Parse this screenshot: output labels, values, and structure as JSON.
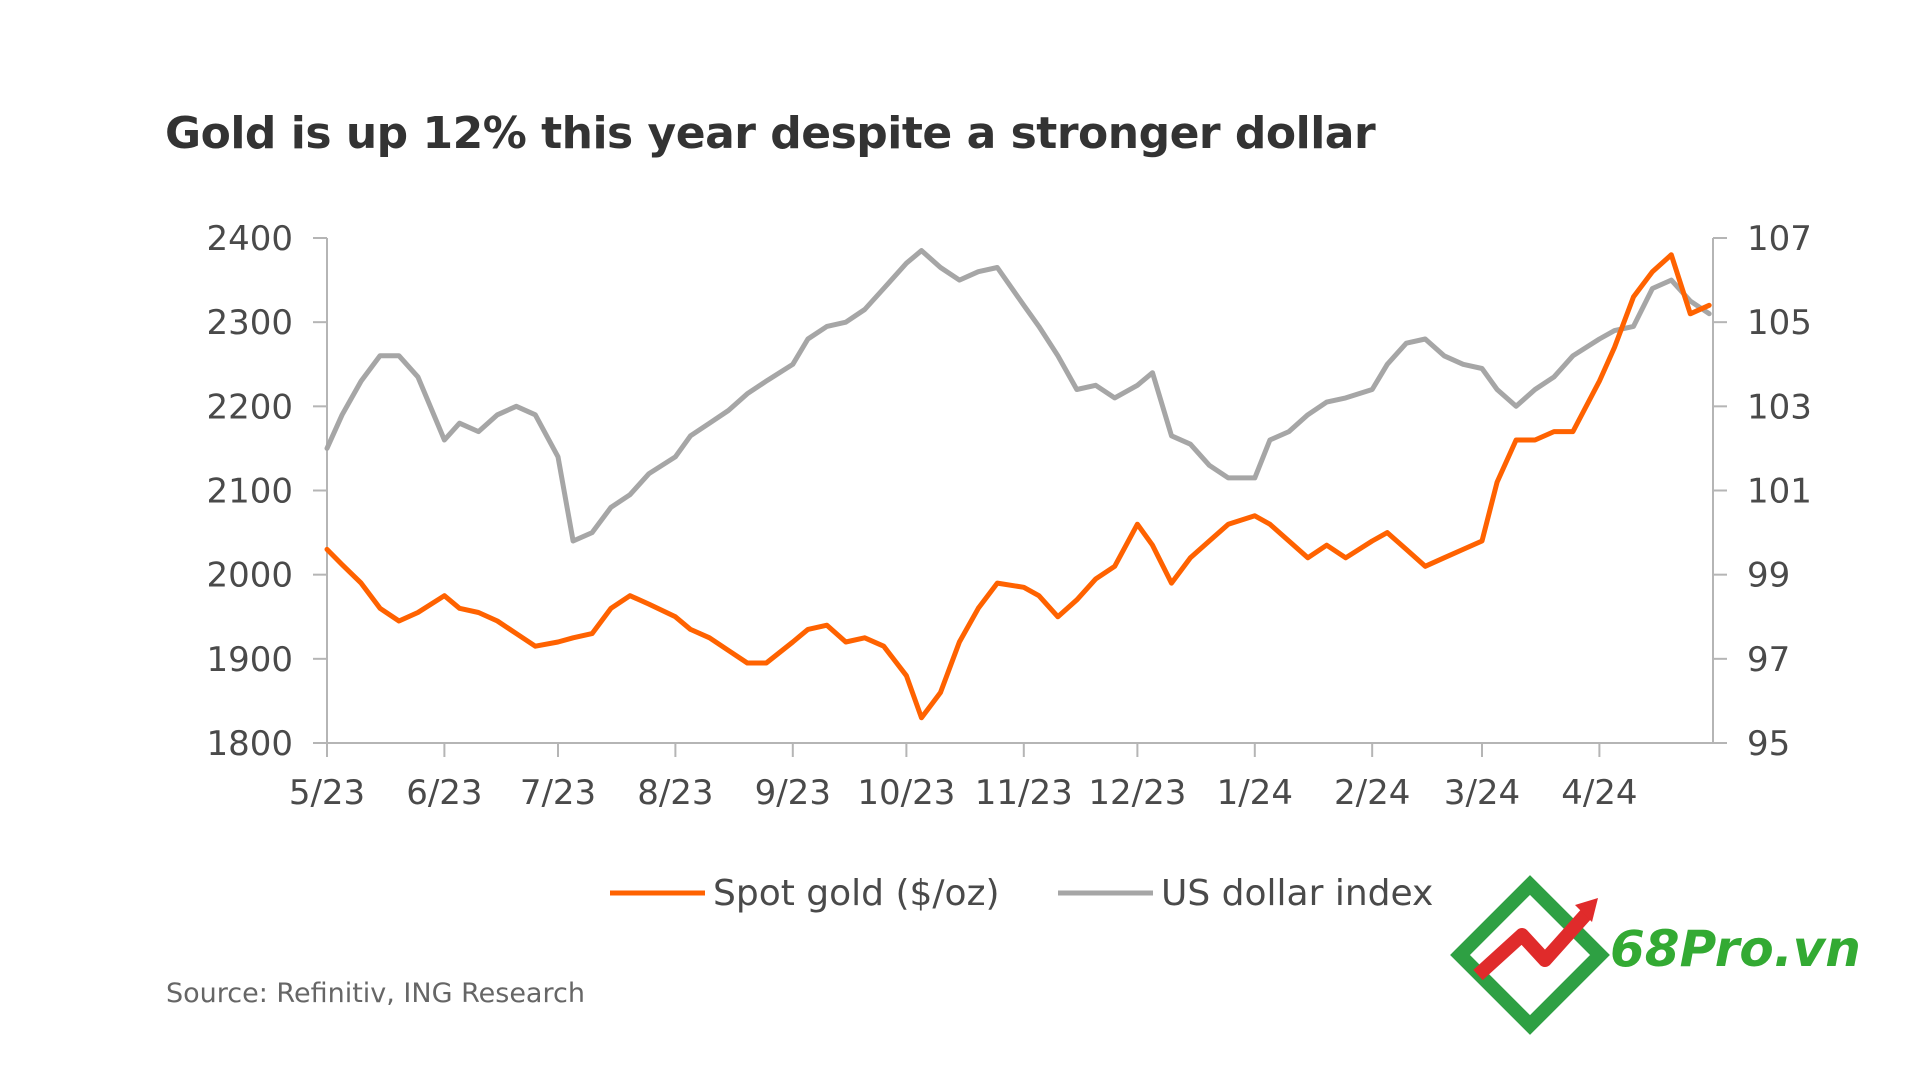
{
  "chart_data": {
    "type": "line",
    "title": "Gold is up 12% this year despite a stronger dollar",
    "source": "Source: Refinitiv, ING Research",
    "x_tick_labels": [
      "5/23",
      "6/23",
      "7/23",
      "8/23",
      "9/23",
      "10/23",
      "11/23",
      "12/23",
      "1/24",
      "2/24",
      "3/24",
      "4/24"
    ],
    "y_left": {
      "ticks": [
        1800,
        1900,
        2000,
        2100,
        2200,
        2300,
        2400
      ],
      "range": [
        1800,
        2400
      ]
    },
    "y_right": {
      "ticks": [
        95,
        97,
        99,
        101,
        103,
        105,
        107
      ],
      "range": [
        95,
        107
      ]
    },
    "legend_placement": "bottom",
    "series": [
      {
        "name": "Spot gold ($/oz)",
        "axis": "left",
        "color": "#ff6200",
        "x": [
          "5/1/23",
          "5/5/23",
          "5/10/23",
          "5/15/23",
          "5/20/23",
          "5/25/23",
          "6/1/23",
          "6/5/23",
          "6/10/23",
          "6/15/23",
          "6/20/23",
          "6/25/23",
          "7/1/23",
          "7/5/23",
          "7/10/23",
          "7/15/23",
          "7/20/23",
          "7/25/23",
          "8/1/23",
          "8/5/23",
          "8/10/23",
          "8/15/23",
          "8/20/23",
          "8/25/23",
          "9/1/23",
          "9/5/23",
          "9/10/23",
          "9/15/23",
          "9/20/23",
          "9/25/23",
          "10/1/23",
          "10/5/23",
          "10/10/23",
          "10/15/23",
          "10/20/23",
          "10/25/23",
          "11/1/23",
          "11/5/23",
          "11/10/23",
          "11/15/23",
          "11/20/23",
          "11/25/23",
          "12/1/23",
          "12/5/23",
          "12/10/23",
          "12/15/23",
          "12/20/23",
          "12/25/23",
          "1/1/24",
          "1/5/24",
          "1/10/24",
          "1/15/24",
          "1/20/24",
          "1/25/24",
          "2/1/24",
          "2/5/24",
          "2/10/24",
          "2/15/24",
          "2/20/24",
          "2/25/24",
          "3/1/24",
          "3/5/24",
          "3/10/24",
          "3/15/24",
          "3/20/24",
          "3/25/24",
          "4/1/24",
          "4/5/24",
          "4/10/24",
          "4/15/24",
          "4/20/24",
          "4/25/24",
          "4/30/24"
        ],
        "values": [
          2030,
          2012,
          1990,
          1960,
          1945,
          1955,
          1975,
          1960,
          1955,
          1945,
          1930,
          1915,
          1920,
          1925,
          1930,
          1960,
          1975,
          1965,
          1950,
          1935,
          1925,
          1910,
          1895,
          1895,
          1920,
          1935,
          1940,
          1920,
          1925,
          1915,
          1880,
          1830,
          1860,
          1920,
          1960,
          1990,
          1985,
          1975,
          1950,
          1970,
          1995,
          2010,
          2060,
          2035,
          1990,
          2020,
          2040,
          2060,
          2070,
          2060,
          2040,
          2020,
          2035,
          2020,
          2040,
          2050,
          2030,
          2010,
          2020,
          2030,
          2040,
          2110,
          2160,
          2160,
          2170,
          2170,
          2230,
          2270,
          2330,
          2360,
          2380,
          2310,
          2320
        ]
      },
      {
        "name": "US dollar index",
        "axis": "right",
        "color": "#a6a6a6",
        "x": [
          "5/1/23",
          "5/5/23",
          "5/10/23",
          "5/15/23",
          "5/20/23",
          "5/25/23",
          "6/1/23",
          "6/5/23",
          "6/10/23",
          "6/15/23",
          "6/20/23",
          "6/25/23",
          "7/1/23",
          "7/5/23",
          "7/10/23",
          "7/15/23",
          "7/20/23",
          "7/25/23",
          "8/1/23",
          "8/5/23",
          "8/10/23",
          "8/15/23",
          "8/20/23",
          "8/25/23",
          "9/1/23",
          "9/5/23",
          "9/10/23",
          "9/15/23",
          "9/20/23",
          "9/25/23",
          "10/1/23",
          "10/5/23",
          "10/10/23",
          "10/15/23",
          "10/20/23",
          "10/25/23",
          "11/1/23",
          "11/5/23",
          "11/10/23",
          "11/15/23",
          "11/20/23",
          "11/25/23",
          "12/1/23",
          "12/5/23",
          "12/10/23",
          "12/15/23",
          "12/20/23",
          "12/25/23",
          "1/1/24",
          "1/5/24",
          "1/10/24",
          "1/15/24",
          "1/20/24",
          "1/25/24",
          "2/1/24",
          "2/5/24",
          "2/10/24",
          "2/15/24",
          "2/20/24",
          "2/25/24",
          "3/1/24",
          "3/5/24",
          "3/10/24",
          "3/15/24",
          "3/20/24",
          "3/25/24",
          "4/1/24",
          "4/5/24",
          "4/10/24",
          "4/15/24",
          "4/20/24",
          "4/25/24",
          "4/30/24"
        ],
        "values": [
          102.0,
          102.8,
          103.6,
          104.2,
          104.2,
          103.7,
          102.2,
          102.6,
          102.4,
          102.8,
          103.0,
          102.8,
          101.8,
          99.8,
          100.0,
          100.6,
          100.9,
          101.4,
          101.8,
          102.3,
          102.6,
          102.9,
          103.3,
          103.6,
          104.0,
          104.6,
          104.9,
          105.0,
          105.3,
          105.8,
          106.4,
          106.7,
          106.3,
          106.0,
          106.2,
          106.3,
          105.4,
          104.9,
          104.2,
          103.4,
          103.5,
          103.2,
          103.5,
          103.8,
          102.3,
          102.1,
          101.6,
          101.3,
          101.3,
          102.2,
          102.4,
          102.8,
          103.1,
          103.2,
          103.4,
          104.0,
          104.5,
          104.6,
          104.2,
          104.0,
          103.9,
          103.4,
          103.0,
          103.4,
          103.7,
          104.2,
          104.6,
          104.8,
          104.9,
          105.8,
          106.0,
          105.5,
          105.2
        ]
      }
    ]
  },
  "watermark": {
    "brand_text": "68Pro.vn",
    "brand_color": "#33aa33",
    "logo_colors": [
      "#2ea043",
      "#e02b2b"
    ]
  }
}
